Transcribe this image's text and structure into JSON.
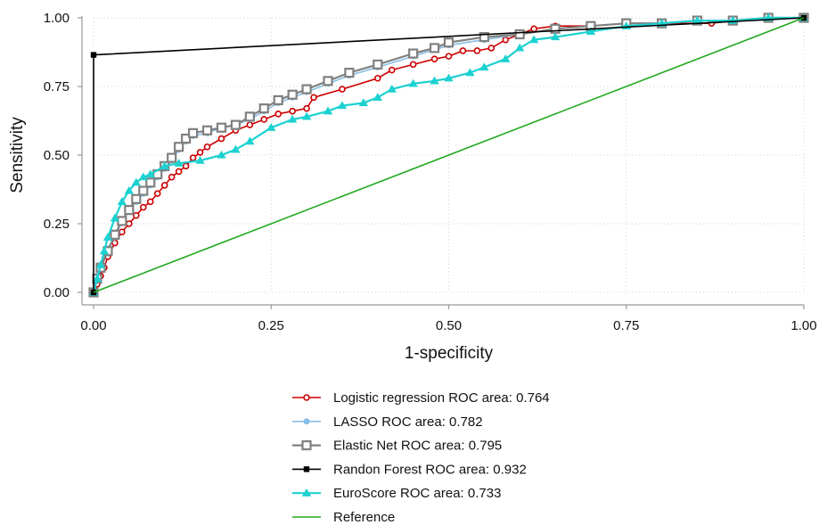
{
  "chart_data": {
    "type": "line",
    "title": "",
    "xlabel": "1-specificity",
    "ylabel": "Sensitivity",
    "xlim": [
      0,
      1
    ],
    "ylim": [
      0,
      1
    ],
    "xticks": [
      "0.00",
      "0.25",
      "0.50",
      "0.75",
      "1.00"
    ],
    "yticks": [
      "0.00",
      "0.25",
      "0.50",
      "0.75",
      "1.00"
    ],
    "grid": true,
    "legend_position": "bottom",
    "series": [
      {
        "name": "Logistic regression ROC area: 0.764",
        "color": "#cc0000",
        "marker": "hollow-circle",
        "x": [
          0,
          0.005,
          0.01,
          0.015,
          0.02,
          0.03,
          0.04,
          0.05,
          0.06,
          0.07,
          0.08,
          0.09,
          0.1,
          0.11,
          0.12,
          0.13,
          0.14,
          0.15,
          0.16,
          0.18,
          0.2,
          0.22,
          0.24,
          0.26,
          0.28,
          0.3,
          0.31,
          0.35,
          0.4,
          0.42,
          0.45,
          0.48,
          0.5,
          0.52,
          0.54,
          0.56,
          0.58,
          0.6,
          0.62,
          0.65,
          0.7,
          0.75,
          0.8,
          0.87,
          0.9,
          1.0
        ],
        "y": [
          0,
          0.03,
          0.06,
          0.09,
          0.13,
          0.18,
          0.22,
          0.25,
          0.28,
          0.31,
          0.33,
          0.36,
          0.39,
          0.42,
          0.44,
          0.46,
          0.49,
          0.51,
          0.53,
          0.56,
          0.59,
          0.61,
          0.63,
          0.65,
          0.66,
          0.67,
          0.71,
          0.74,
          0.78,
          0.81,
          0.83,
          0.85,
          0.86,
          0.88,
          0.88,
          0.89,
          0.92,
          0.94,
          0.96,
          0.97,
          0.97,
          0.98,
          0.98,
          0.98,
          0.99,
          1.0
        ]
      },
      {
        "name": "LASSO ROC area: 0.782",
        "color": "#87bfe6",
        "marker": "filled-circle",
        "x": [
          0,
          0.005,
          0.01,
          0.02,
          0.03,
          0.04,
          0.05,
          0.06,
          0.07,
          0.08,
          0.09,
          0.1,
          0.11,
          0.12,
          0.13,
          0.14,
          0.16,
          0.18,
          0.2,
          0.22,
          0.24,
          0.26,
          0.28,
          0.3,
          0.33,
          0.36,
          0.4,
          0.45,
          0.5,
          0.55,
          0.6,
          0.65,
          0.7,
          0.75,
          0.8,
          0.85,
          0.9,
          0.95,
          1.0
        ],
        "y": [
          0,
          0.06,
          0.1,
          0.16,
          0.2,
          0.26,
          0.3,
          0.33,
          0.36,
          0.39,
          0.42,
          0.45,
          0.48,
          0.52,
          0.55,
          0.57,
          0.58,
          0.6,
          0.61,
          0.63,
          0.66,
          0.69,
          0.71,
          0.73,
          0.76,
          0.79,
          0.82,
          0.86,
          0.9,
          0.92,
          0.94,
          0.96,
          0.97,
          0.98,
          0.98,
          0.99,
          0.99,
          1.0,
          1.0
        ]
      },
      {
        "name": "Elastic Net ROC area: 0.795",
        "color": "#808080",
        "marker": "hollow-square",
        "x": [
          0,
          0.005,
          0.01,
          0.02,
          0.03,
          0.04,
          0.05,
          0.06,
          0.07,
          0.08,
          0.09,
          0.1,
          0.11,
          0.12,
          0.13,
          0.14,
          0.16,
          0.18,
          0.2,
          0.22,
          0.24,
          0.26,
          0.28,
          0.3,
          0.33,
          0.36,
          0.4,
          0.45,
          0.48,
          0.5,
          0.55,
          0.6,
          0.65,
          0.7,
          0.75,
          0.8,
          0.85,
          0.9,
          0.95,
          1.0
        ],
        "y": [
          0,
          0.05,
          0.09,
          0.15,
          0.21,
          0.26,
          0.3,
          0.34,
          0.37,
          0.4,
          0.43,
          0.46,
          0.49,
          0.53,
          0.56,
          0.58,
          0.59,
          0.6,
          0.61,
          0.64,
          0.67,
          0.7,
          0.72,
          0.74,
          0.77,
          0.8,
          0.83,
          0.87,
          0.89,
          0.91,
          0.93,
          0.94,
          0.96,
          0.97,
          0.98,
          0.98,
          0.99,
          0.99,
          1.0,
          1.0
        ]
      },
      {
        "name": "Randon Forest ROC area: 0.932",
        "color": "#000000",
        "marker": "filled-square",
        "x": [
          0,
          0,
          1
        ],
        "y": [
          0,
          0.865,
          1
        ]
      },
      {
        "name": "EuroScore ROC area: 0.733",
        "color": "#1cd1d1",
        "marker": "filled-triangle",
        "x": [
          0,
          0.005,
          0.01,
          0.015,
          0.02,
          0.03,
          0.04,
          0.05,
          0.06,
          0.07,
          0.08,
          0.1,
          0.12,
          0.15,
          0.18,
          0.2,
          0.22,
          0.25,
          0.28,
          0.3,
          0.33,
          0.35,
          0.38,
          0.4,
          0.42,
          0.45,
          0.48,
          0.5,
          0.53,
          0.55,
          0.58,
          0.6,
          0.62,
          0.65,
          0.7,
          0.75,
          0.8,
          0.85,
          0.9,
          0.95,
          1.0
        ],
        "y": [
          0,
          0.05,
          0.1,
          0.15,
          0.2,
          0.27,
          0.33,
          0.37,
          0.4,
          0.42,
          0.43,
          0.46,
          0.47,
          0.48,
          0.5,
          0.52,
          0.55,
          0.6,
          0.63,
          0.64,
          0.66,
          0.68,
          0.69,
          0.71,
          0.74,
          0.76,
          0.77,
          0.78,
          0.8,
          0.82,
          0.85,
          0.89,
          0.92,
          0.93,
          0.95,
          0.97,
          0.98,
          0.99,
          0.99,
          1.0,
          1.0
        ]
      },
      {
        "name": "Reference",
        "color": "#22aa22",
        "marker": "none",
        "x": [
          0,
          1
        ],
        "y": [
          0,
          1
        ]
      }
    ]
  }
}
